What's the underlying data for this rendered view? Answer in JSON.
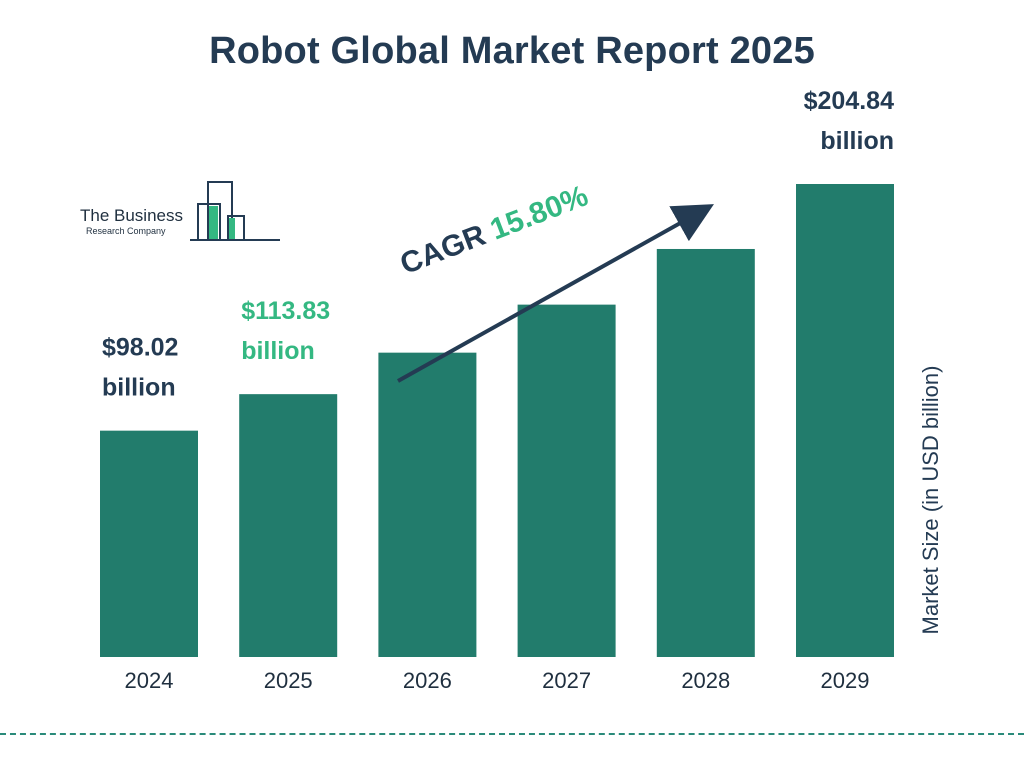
{
  "title": "Robot Global Market Report 2025",
  "logo": {
    "line1": "The Business",
    "line2": "Research Company"
  },
  "cagr": {
    "label": "CAGR",
    "value": "15.80%"
  },
  "colors": {
    "bar": "#227c6c",
    "title": "#243b53",
    "highlight": "#34b882",
    "label": "#243b53"
  },
  "chart_data": {
    "type": "bar",
    "title": "Robot Global Market Report 2025",
    "categories": [
      "2024",
      "2025",
      "2026",
      "2027",
      "2028",
      "2029"
    ],
    "values": [
      98.02,
      113.83,
      131.8,
      152.6,
      176.7,
      204.84
    ],
    "value_labels": [
      [
        "$98.02",
        "billion"
      ],
      [
        "$113.83",
        "billion"
      ],
      null,
      null,
      null,
      [
        "$204.84",
        "billion"
      ]
    ],
    "highlight_index": 1,
    "ylabel": "Market Size (in USD billion)",
    "ylim": [
      0,
      204.84
    ],
    "grid": false,
    "legend": "none"
  }
}
